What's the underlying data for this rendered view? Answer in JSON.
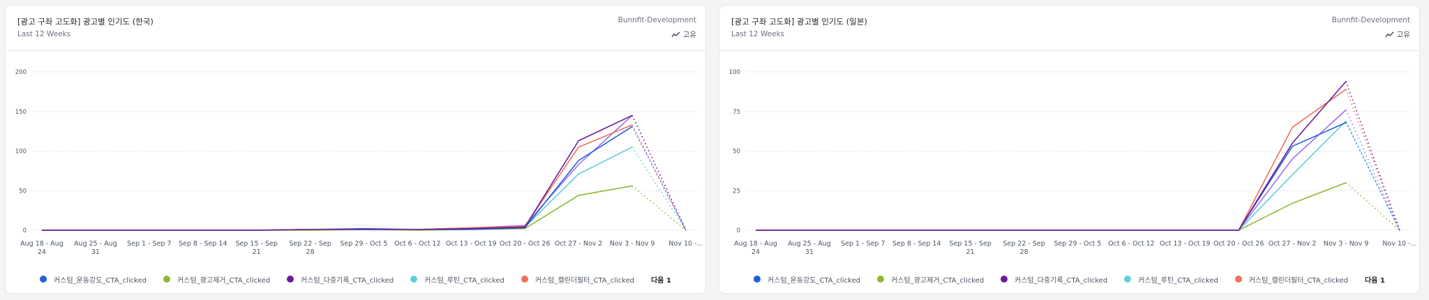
{
  "cards": [
    {
      "title": "[광고 구좌 고도화] 광고별 인기도 (한국)",
      "subtitle": "Last 12 Weeks",
      "project": "Bunnfit-Development",
      "share_label": "고유",
      "legend_more": "다음 1",
      "chart_data": {
        "type": "line",
        "title": "[광고 구좌 고도화] 광고별 인기도 (한국)",
        "x": [
          "Aug 18 - Aug 24",
          "Aug 25 - Aug 31",
          "Sep 1 - Sep 7",
          "Sep 8 - Sep 14",
          "Sep 15 - Sep 21",
          "Sep 22 - Sep 28",
          "Sep 29 - Oct 5",
          "Oct 6 - Oct 12",
          "Oct 13 - Oct 19",
          "Oct 20 - Oct 26",
          "Oct 27 - Nov 2",
          "Nov 3 - Nov 9",
          "Nov 10 -..."
        ],
        "xtick_lines": [
          [
            "Aug 18 - Aug",
            "24"
          ],
          [
            "Aug 25 - Aug",
            "31"
          ],
          [
            "Sep 1 - Sep 7"
          ],
          [
            "Sep 8 - Sep 14"
          ],
          [
            "Sep 15 - Sep",
            "21"
          ],
          [
            "Sep 22 - Sep",
            "28"
          ],
          [
            "Sep 29 - Oct 5"
          ],
          [
            "Oct 6 - Oct 12"
          ],
          [
            "Oct 13 - Oct 19"
          ],
          [
            "Oct 20 - Oct 26"
          ],
          [
            "Oct 27 - Nov 2"
          ],
          [
            "Nov 3 - Nov 9"
          ],
          [
            "Nov 10 -..."
          ]
        ],
        "yticks": [
          0,
          50,
          100,
          150,
          200
        ],
        "ylim": [
          0,
          200
        ],
        "grid": true,
        "legend_position": "bottom",
        "incomplete_last_point": true,
        "series": [
          {
            "name": "커스텀_운동강도_CTA_clicked",
            "color": "#1f5fe0",
            "values": [
              0,
              0,
              0,
              0,
              0,
              1,
              2,
              1,
              1,
              3,
              88,
              131,
              0
            ]
          },
          {
            "name": "커스텀_광고제거_CTA_clicked",
            "color": "#8fb832",
            "values": [
              0,
              0,
              0,
              0,
              0,
              0,
              1,
              0,
              1,
              2,
              44,
              56,
              0
            ]
          },
          {
            "name": "커스텀_다중기록_CTA_clicked",
            "color": "#6a1b9a",
            "values": [
              0,
              0,
              0,
              0,
              0,
              1,
              1,
              1,
              2,
              4,
              113,
              145,
              0
            ]
          },
          {
            "name": "커스텀_루틴_CTA_clicked",
            "color": "#5fd0d6",
            "values": [
              0,
              0,
              0,
              0,
              0,
              1,
              1,
              1,
              2,
              4,
              71,
              105,
              0
            ]
          },
          {
            "name": "커스텀_캘린더필터_CTA_clicked",
            "color": "#f0705a",
            "values": [
              0,
              0,
              0,
              0,
              0,
              1,
              1,
              1,
              3,
              5,
              105,
              133,
              0
            ]
          },
          {
            "name": "hidden-series",
            "color": "#a070ee",
            "values": [
              0,
              0,
              0,
              0,
              0,
              1,
              1,
              1,
              3,
              6,
              83,
              145,
              0
            ],
            "in_legend": false
          }
        ]
      }
    },
    {
      "title": "[광고 구좌 고도화] 광고별 인기도 (일본)",
      "subtitle": "Last 12 Weeks",
      "project": "Bunnfit-Development",
      "share_label": "고유",
      "legend_more": "다음 1",
      "chart_data": {
        "type": "line",
        "title": "[광고 구좌 고도화] 광고별 인기도 (일본)",
        "x": [
          "Aug 18 - Aug 24",
          "Aug 25 - Aug 31",
          "Sep 1 - Sep 7",
          "Sep 8 - Sep 14",
          "Sep 15 - Sep 21",
          "Sep 22 - Sep 28",
          "Sep 29 - Oct 5",
          "Oct 6 - Oct 12",
          "Oct 13 - Oct 19",
          "Oct 20 - Oct 26",
          "Oct 27 - Nov 2",
          "Nov 3 - Nov 9",
          "Nov 10 -..."
        ],
        "xtick_lines": [
          [
            "Aug 18 - Aug",
            "24"
          ],
          [
            "Aug 25 - Aug",
            "31"
          ],
          [
            "Sep 1 - Sep 7"
          ],
          [
            "Sep 8 - Sep 14"
          ],
          [
            "Sep 15 - Sep",
            "21"
          ],
          [
            "Sep 22 - Sep",
            "28"
          ],
          [
            "Sep 29 - Oct 5"
          ],
          [
            "Oct 6 - Oct 12"
          ],
          [
            "Oct 13 - Oct 19"
          ],
          [
            "Oct 20 - Oct 26"
          ],
          [
            "Oct 27 - Nov 2"
          ],
          [
            "Nov 3 - Nov 9"
          ],
          [
            "Nov 10 -..."
          ]
        ],
        "yticks": [
          0,
          25,
          50,
          75,
          100
        ],
        "ylim": [
          0,
          100
        ],
        "grid": true,
        "legend_position": "bottom",
        "incomplete_last_point": true,
        "series": [
          {
            "name": "커스텀_운동강도_CTA_clicked",
            "color": "#1f5fe0",
            "values": [
              0,
              0,
              0,
              0,
              0,
              0,
              0,
              0,
              0,
              0,
              53,
              68,
              0
            ]
          },
          {
            "name": "커스텀_광고제거_CTA_clicked",
            "color": "#8fb832",
            "values": [
              0,
              0,
              0,
              0,
              0,
              0,
              0,
              0,
              0,
              0,
              17,
              30,
              0
            ]
          },
          {
            "name": "커스텀_다중기록_CTA_clicked",
            "color": "#6a1b9a",
            "values": [
              0,
              0,
              0,
              0,
              0,
              0,
              0,
              0,
              0,
              0,
              55,
              94,
              0
            ]
          },
          {
            "name": "커스텀_루틴_CTA_clicked",
            "color": "#5fd0d6",
            "values": [
              0,
              0,
              0,
              0,
              0,
              0,
              0,
              0,
              0,
              0,
              35,
              69,
              0
            ]
          },
          {
            "name": "커스텀_캘린더필터_CTA_clicked",
            "color": "#f0705a",
            "values": [
              0,
              0,
              0,
              0,
              0,
              0,
              0,
              0,
              0,
              0,
              65,
              89,
              0
            ]
          },
          {
            "name": "hidden-series",
            "color": "#a070ee",
            "values": [
              0,
              0,
              0,
              0,
              0,
              0,
              0,
              0,
              0,
              0,
              45,
              76,
              0
            ],
            "in_legend": false
          }
        ]
      }
    }
  ]
}
